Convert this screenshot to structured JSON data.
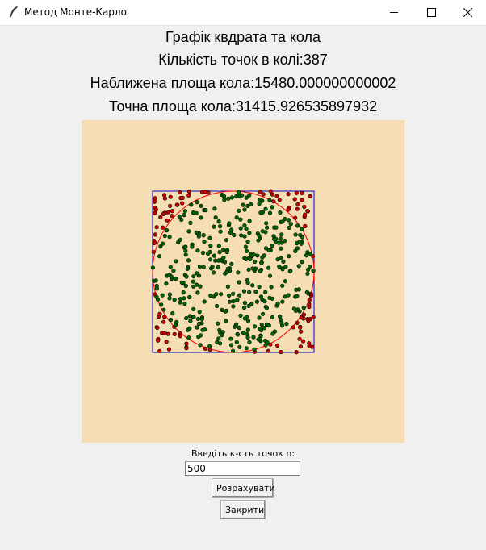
{
  "window": {
    "title": "Метод Монте-Карло",
    "icon": "feather-icon",
    "controls": [
      "minimize-icon",
      "maximize-icon",
      "close-icon"
    ]
  },
  "headings": {
    "title": "Графік квдрата та кола",
    "points_in_circle": "Кількість точок в колі:387",
    "approx_area": "Наближена площа кола:15480.000000000002",
    "exact_area": "Точна площа кола:31415.926535897932"
  },
  "plot": {
    "background_color": "#f5deb3",
    "square_color": "#0000cc",
    "circle_color": "#ff0000",
    "inside_color": "#006400",
    "outside_color": "#cc0000",
    "total_points": 500,
    "inside_points": 387
  },
  "form": {
    "label": "Введіть к-сть точок n:",
    "input_value": "500",
    "calculate_label": "Розрахувати",
    "close_label": "Закрити"
  }
}
